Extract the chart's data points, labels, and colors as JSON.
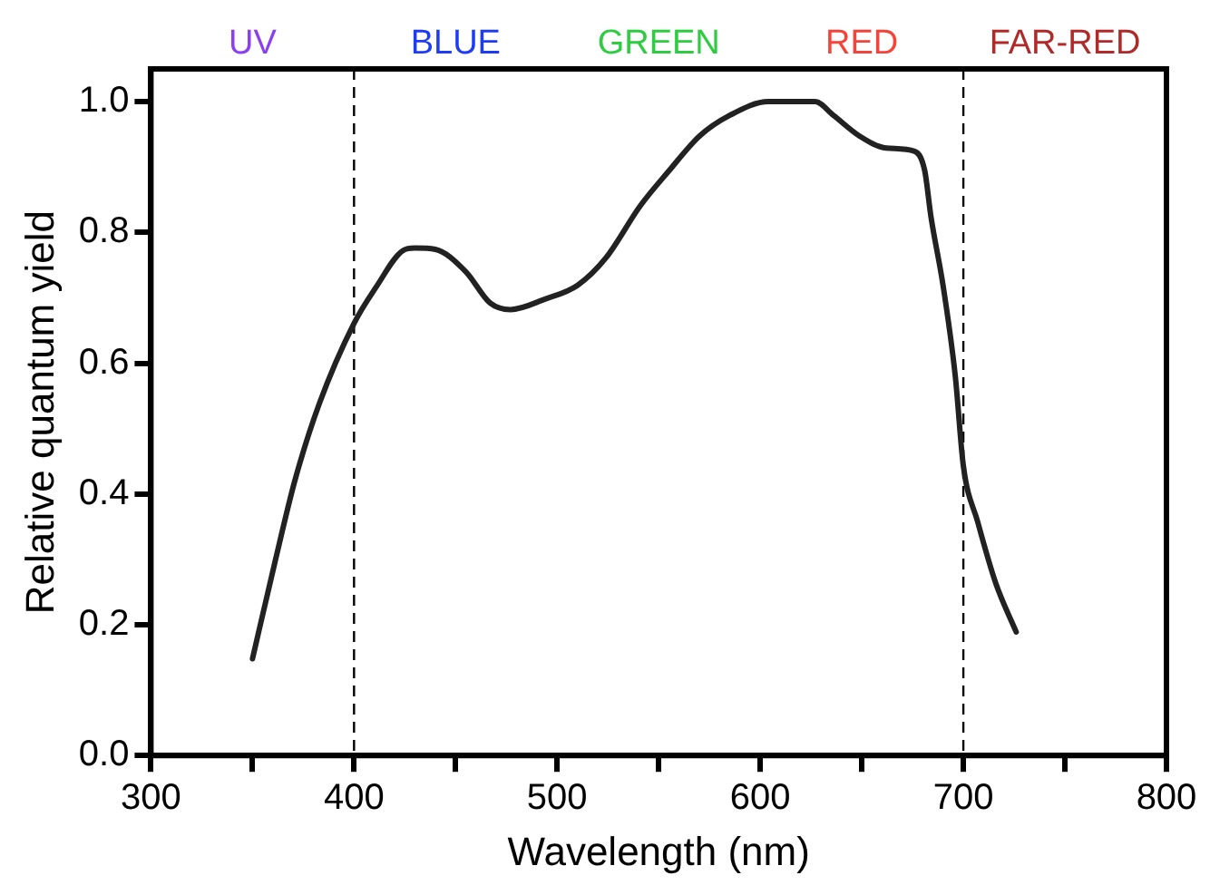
{
  "chart_data": {
    "type": "line",
    "xlabel": "Wavelength (nm)",
    "ylabel": "Relative quantum yield",
    "xlim": [
      300,
      800
    ],
    "ylim": [
      0,
      1.05
    ],
    "xticks": [
      300,
      {
        "value": 350,
        "label": null
      },
      400,
      {
        "value": 450,
        "label": null
      },
      500,
      {
        "value": 550,
        "label": null
      },
      600,
      {
        "value": 650,
        "label": null
      },
      700,
      {
        "value": 750,
        "label": null
      },
      800
    ],
    "yticks": [
      {
        "value": 0,
        "label": "0.0"
      },
      {
        "value": 0.2,
        "label": "0.2"
      },
      {
        "value": 0.4,
        "label": "0.4"
      },
      {
        "value": 0.6,
        "label": "0.6"
      },
      {
        "value": 0.8,
        "label": "0.8"
      },
      {
        "value": 1,
        "label": "1.0"
      }
    ],
    "grid": false,
    "legend": false,
    "marker": "none",
    "line_style": "solid",
    "series": [
      {
        "color": "#222222",
        "x": [
          350,
          361,
          371,
          383,
          400,
          411,
          424,
          430,
          440,
          455,
          467,
          477,
          494,
          510,
          524,
          541,
          555,
          570,
          585,
          604,
          627,
          636,
          649,
          662,
          676,
          681,
          684,
          690,
          696,
          700,
          707,
          716,
          726
        ],
        "values": [
          0.148,
          0.295,
          0.422,
          0.539,
          0.661,
          0.717,
          0.772,
          0.776,
          0.774,
          0.74,
          0.692,
          0.682,
          0.698,
          0.719,
          0.761,
          0.841,
          0.894,
          0.947,
          0.979,
          1.0,
          1.0,
          0.979,
          0.947,
          0.929,
          0.924,
          0.894,
          0.825,
          0.719,
          0.581,
          0.443,
          0.358,
          0.263,
          0.189
        ]
      }
    ],
    "ref_lines": [
      {
        "axis": "x",
        "value": 400,
        "line_style": "dashed",
        "color": "#000000"
      },
      {
        "axis": "x",
        "value": 700,
        "line_style": "dashed",
        "color": "#000000"
      }
    ],
    "annotations": [
      "UV",
      "BLUE",
      "GREEN",
      "RED",
      "FAR-RED"
    ]
  }
}
